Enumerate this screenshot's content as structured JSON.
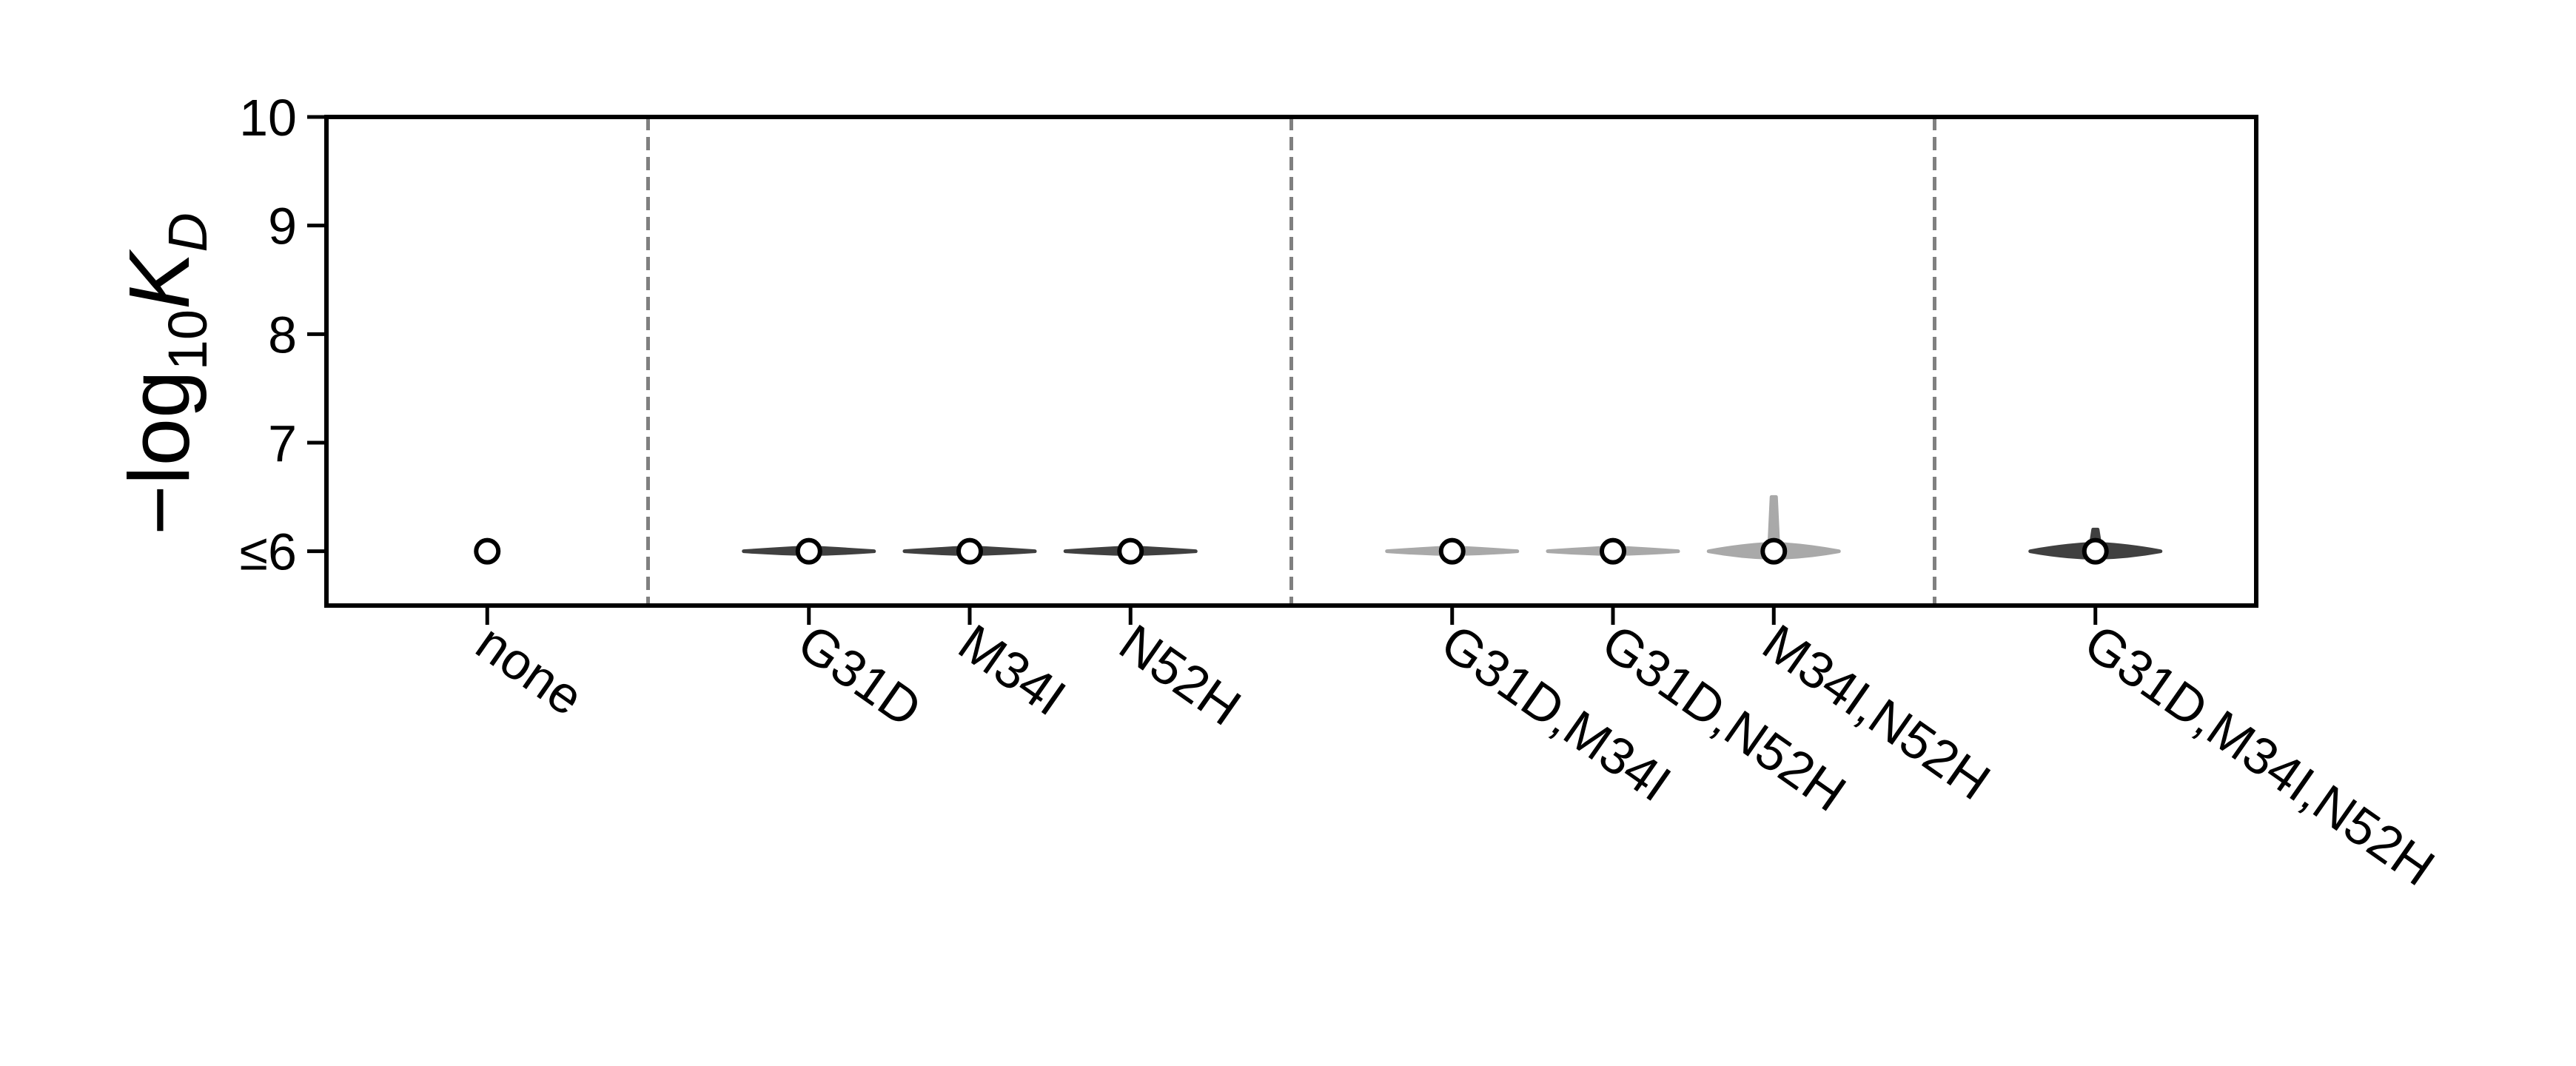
{
  "chart_data": {
    "type": "violin",
    "ylabel": {
      "prefix": "−log",
      "base": "10",
      "symbol": "K",
      "subscript": "D"
    },
    "ylim": [
      5.5,
      10
    ],
    "yticks": [
      {
        "value": 6,
        "label": "≤6"
      },
      {
        "value": 7,
        "label": "7"
      },
      {
        "value": 8,
        "label": "8"
      },
      {
        "value": 9,
        "label": "9"
      },
      {
        "value": 10,
        "label": "10"
      }
    ],
    "categories": [
      "none",
      "G31D",
      "M34I",
      "N52H",
      "G31D,M34I",
      "G31D,N52H",
      "M34I,N52H",
      "G31D,M34I,N52H"
    ],
    "x_positions": [
      0,
      2,
      3,
      4,
      6,
      7,
      8,
      10
    ],
    "group_separators": [
      1,
      5,
      9
    ],
    "median_values": [
      6,
      6,
      6,
      6,
      6,
      6,
      6,
      6
    ],
    "violin_max": [
      6,
      6,
      6,
      6,
      6,
      6,
      6.5,
      6.2
    ],
    "colors": {
      "axis": "#000000",
      "separator": "#808080",
      "violin_dark": "#404040",
      "violin_light": "#a9a9a9",
      "marker_fill": "#ffffff",
      "marker_edge": "#000000"
    },
    "violin_colors": [
      "none",
      "violin_dark",
      "violin_dark",
      "violin_dark",
      "violin_light",
      "violin_light",
      "violin_light",
      "violin_dark"
    ],
    "grid": false,
    "legend": "none"
  }
}
